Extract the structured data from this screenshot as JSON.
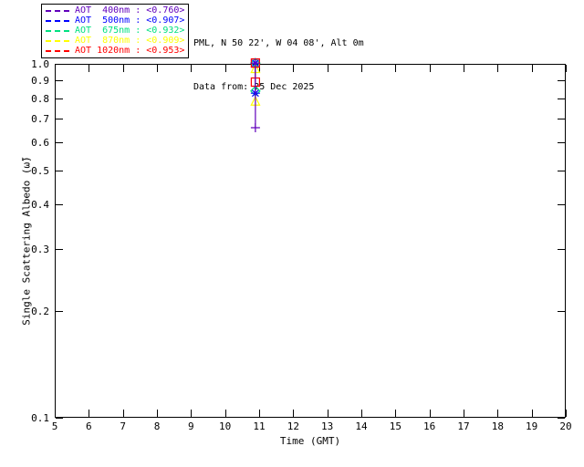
{
  "header": {
    "site_line": "PML, N 50 22', W 04 08', Alt 0m",
    "data_from_line": "Data from: 25 Dec 2025"
  },
  "legend": {
    "entries": [
      {
        "label": "AOT  400nm : <0.760>",
        "wavelength_nm": 400,
        "mean_ssa": "<0.760>",
        "color": "#6000BB"
      },
      {
        "label": "AOT  500nm : <0.907>",
        "wavelength_nm": 500,
        "mean_ssa": "<0.907>",
        "color": "#0000FF"
      },
      {
        "label": "AOT  675nm : <0.932>",
        "wavelength_nm": 675,
        "mean_ssa": "<0.932>",
        "color": "#00E080"
      },
      {
        "label": "AOT  870nm : <0.909>",
        "wavelength_nm": 870,
        "mean_ssa": "<0.909>",
        "color": "#FFFF00"
      },
      {
        "label": "AOT 1020nm : <0.953>",
        "wavelength_nm": 1020,
        "mean_ssa": "<0.953>",
        "color": "#FF0000"
      }
    ]
  },
  "chart_data": {
    "type": "line",
    "title": "",
    "xlabel": "Time (GMT)",
    "ylabel": "Single Scattering Albedo (ω̃)",
    "xlim": [
      5,
      20
    ],
    "ylim": [
      0.1,
      1.0
    ],
    "yscale": "log",
    "grid": false,
    "legend_position": "outside-top-left",
    "x_ticks": [
      5,
      6,
      7,
      8,
      9,
      10,
      11,
      12,
      13,
      14,
      15,
      16,
      17,
      18,
      19,
      20
    ],
    "y_ticks": [
      1.0,
      0.9,
      0.8,
      0.7,
      0.6,
      0.5,
      0.4,
      0.3,
      0.2,
      0.1
    ],
    "y_tick_labels": [
      "1.0",
      "0.9",
      "0.8",
      "0.7",
      "0.6",
      "0.5",
      "0.4",
      "0.3",
      "0.2",
      "0.1"
    ],
    "series": [
      {
        "name": "AOT 400nm",
        "color": "#6000BB",
        "symbol": "plus",
        "x": [
          10.89,
          10.89
        ],
        "y": [
          1.005,
          0.66
        ]
      },
      {
        "name": "AOT 500nm",
        "color": "#0000FF",
        "symbol": "asterisk",
        "x": [
          10.89,
          10.89
        ],
        "y": [
          1.005,
          0.826
        ]
      },
      {
        "name": "AOT 675nm",
        "color": "#00E080",
        "symbol": "diamond",
        "x": [
          10.89,
          10.89
        ],
        "y": [
          1.005,
          0.838
        ]
      },
      {
        "name": "AOT 870nm",
        "color": "#FFFF00",
        "symbol": "triangle",
        "x": [
          10.89,
          10.89
        ],
        "y": [
          0.968,
          0.783
        ]
      },
      {
        "name": "AOT 1020nm",
        "color": "#FF0000",
        "symbol": "square",
        "x": [
          10.89,
          10.89
        ],
        "y": [
          1.005,
          0.888
        ]
      }
    ],
    "draw_order": [
      3,
      2,
      1,
      4,
      0
    ]
  }
}
